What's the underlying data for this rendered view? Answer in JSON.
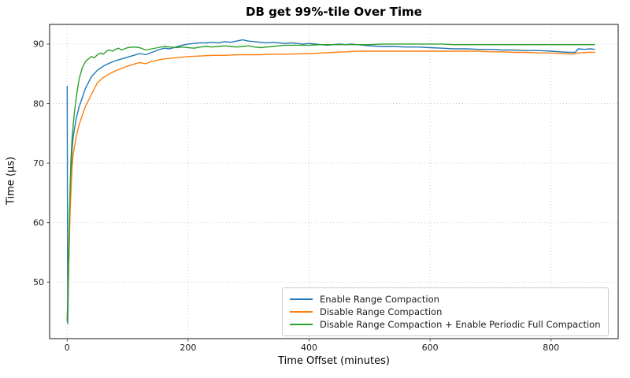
{
  "chart_data": {
    "type": "line",
    "title": "DB get 99%-tile Over Time",
    "xlabel": "Time Offset (minutes)",
    "ylabel": "Time (µs)",
    "xlim": [
      -29,
      911
    ],
    "ylim": [
      40.5,
      93.3
    ],
    "xticks": [
      0,
      200,
      400,
      600,
      800
    ],
    "yticks": [
      50,
      60,
      70,
      80,
      90
    ],
    "grid": true,
    "grid_style": "dotted",
    "legend_position": "lower right",
    "colors": {
      "grid": "#c8c8c8",
      "spine": "#3c3c3c",
      "tick_label": "#1a1a1a"
    },
    "series": [
      {
        "name": "Enable Range Compaction",
        "color": "#1f77b4",
        "x": [
          0,
          1,
          3,
          5,
          8,
          10,
          15,
          20,
          25,
          30,
          35,
          40,
          50,
          60,
          70,
          80,
          90,
          100,
          110,
          120,
          130,
          140,
          150,
          160,
          170,
          180,
          190,
          200,
          210,
          220,
          230,
          240,
          250,
          260,
          270,
          280,
          290,
          300,
          310,
          320,
          330,
          340,
          350,
          360,
          370,
          380,
          390,
          400,
          410,
          420,
          430,
          440,
          450,
          460,
          470,
          480,
          490,
          500,
          520,
          540,
          560,
          580,
          600,
          620,
          640,
          660,
          680,
          700,
          720,
          740,
          760,
          780,
          800,
          815,
          830,
          840,
          845,
          855,
          865,
          872
        ],
        "y": [
          82.9,
          43.0,
          55,
          65,
          72,
          74.5,
          77.5,
          79.5,
          81,
          82.5,
          83.5,
          84.5,
          85.6,
          86.3,
          86.8,
          87.2,
          87.5,
          87.8,
          88.1,
          88.4,
          88.2,
          88.6,
          89.0,
          89.3,
          89.2,
          89.5,
          89.8,
          90.0,
          90.1,
          90.2,
          90.2,
          90.3,
          90.2,
          90.4,
          90.3,
          90.5,
          90.7,
          90.5,
          90.4,
          90.3,
          90.2,
          90.3,
          90.2,
          90.1,
          90.2,
          90.1,
          90.0,
          90.1,
          90.0,
          89.9,
          89.8,
          89.9,
          90.0,
          89.9,
          90.0,
          89.9,
          89.8,
          89.7,
          89.6,
          89.6,
          89.5,
          89.5,
          89.4,
          89.3,
          89.2,
          89.2,
          89.1,
          89.1,
          89.0,
          89.0,
          88.9,
          88.9,
          88.8,
          88.7,
          88.6,
          88.6,
          89.2,
          89.1,
          89.2,
          89.1
        ]
      },
      {
        "name": "Disable Range Compaction",
        "color": "#ff7f0e",
        "x": [
          0,
          2,
          5,
          8,
          10,
          15,
          20,
          25,
          30,
          35,
          40,
          50,
          60,
          70,
          80,
          90,
          100,
          110,
          120,
          130,
          140,
          150,
          160,
          170,
          180,
          190,
          200,
          220,
          240,
          260,
          280,
          300,
          320,
          340,
          360,
          380,
          400,
          420,
          440,
          460,
          480,
          500,
          520,
          540,
          560,
          580,
          600,
          620,
          640,
          660,
          680,
          700,
          720,
          740,
          760,
          780,
          800,
          820,
          835,
          845,
          860,
          872
        ],
        "y": [
          43.6,
          50,
          62,
          69,
          71.5,
          74.5,
          76.5,
          78,
          79.5,
          80.5,
          81.5,
          83.5,
          84.4,
          85.0,
          85.5,
          85.9,
          86.3,
          86.6,
          86.9,
          86.7,
          87.1,
          87.3,
          87.5,
          87.6,
          87.7,
          87.8,
          87.9,
          88.0,
          88.1,
          88.1,
          88.2,
          88.2,
          88.2,
          88.3,
          88.3,
          88.35,
          88.4,
          88.5,
          88.6,
          88.7,
          88.8,
          88.8,
          88.8,
          88.8,
          88.8,
          88.8,
          88.8,
          88.8,
          88.8,
          88.8,
          88.8,
          88.7,
          88.7,
          88.6,
          88.6,
          88.5,
          88.5,
          88.4,
          88.3,
          88.5,
          88.6,
          88.6
        ]
      },
      {
        "name": "Disable Range Compaction + Enable Periodic Full Compaction",
        "color": "#2ca02c",
        "x": [
          0,
          2,
          4,
          6,
          8,
          10,
          12,
          15,
          18,
          20,
          25,
          30,
          35,
          40,
          45,
          50,
          55,
          60,
          65,
          70,
          75,
          80,
          85,
          90,
          95,
          100,
          110,
          120,
          130,
          140,
          150,
          160,
          170,
          180,
          190,
          200,
          210,
          220,
          230,
          240,
          250,
          260,
          270,
          280,
          290,
          300,
          310,
          320,
          330,
          340,
          350,
          360,
          370,
          380,
          390,
          400,
          420,
          440,
          460,
          480,
          500,
          520,
          540,
          560,
          580,
          600,
          620,
          640,
          660,
          680,
          700,
          720,
          740,
          760,
          780,
          800,
          820,
          840,
          856,
          872
        ],
        "y": [
          43.4,
          52,
          62,
          70,
          74,
          76.5,
          78.5,
          81,
          83,
          84.2,
          86.0,
          87.0,
          87.5,
          87.9,
          87.7,
          88.2,
          88.5,
          88.3,
          88.8,
          89.0,
          88.8,
          89.1,
          89.3,
          89.0,
          89.2,
          89.4,
          89.5,
          89.4,
          89.0,
          89.2,
          89.4,
          89.6,
          89.5,
          89.4,
          89.5,
          89.4,
          89.3,
          89.5,
          89.6,
          89.5,
          89.6,
          89.7,
          89.6,
          89.5,
          89.6,
          89.7,
          89.5,
          89.4,
          89.5,
          89.6,
          89.7,
          89.8,
          89.8,
          89.8,
          89.8,
          89.8,
          89.9,
          89.9,
          89.9,
          89.9,
          89.9,
          90.0,
          90.0,
          90.0,
          90.0,
          90.0,
          90.0,
          89.9,
          89.9,
          89.9,
          89.9,
          89.9,
          89.9,
          89.9,
          89.9,
          89.9,
          89.9,
          89.9,
          89.9,
          89.9
        ]
      }
    ]
  }
}
